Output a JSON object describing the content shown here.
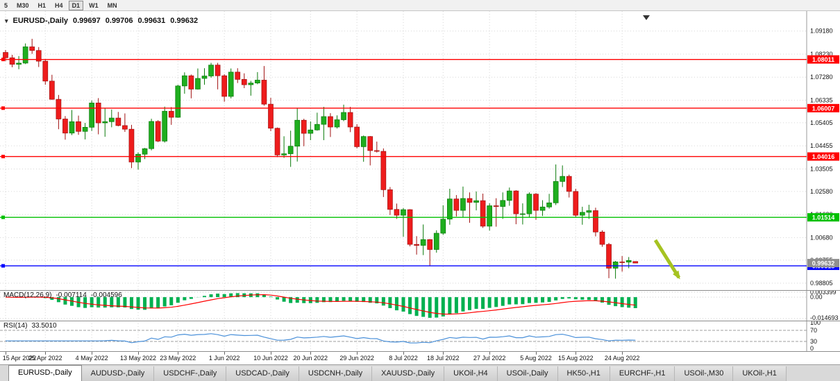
{
  "toolbar": {
    "periods": [
      {
        "label": "5",
        "selected": false
      },
      {
        "label": "M30",
        "selected": false
      },
      {
        "label": "H1",
        "selected": false
      },
      {
        "label": "H4",
        "selected": false
      },
      {
        "label": "D1",
        "selected": true
      },
      {
        "label": "W1",
        "selected": false
      },
      {
        "label": "MN",
        "selected": false
      }
    ]
  },
  "header": {
    "symbol": "EURUSD-,Daily",
    "open": "0.99697",
    "high": "0.99706",
    "low": "0.99631",
    "close": "0.99632"
  },
  "chart_data": {
    "type": "candlestick",
    "title": "EURUSD-,Daily",
    "y_axis_labels": [
      "1.09180",
      "1.08230",
      "1.07280",
      "1.06335",
      "1.05405",
      "1.04455",
      "1.03505",
      "1.02580",
      "1.01630",
      "1.00680",
      "0.99755",
      "0.98805"
    ],
    "y_range": [
      0.9852,
      1.1
    ],
    "x_tick_labels": [
      "15 Apr 2022",
      "25 Apr 2022",
      "4 May 2022",
      "13 May 2022",
      "23 May 2022",
      "1 Jun 2022",
      "10 Jun 2022",
      "20 Jun 2022",
      "29 Jun 2022",
      "8 Jul 2022",
      "18 Jul 2022",
      "27 Jul 2022",
      "5 Aug 2022",
      "15 Aug 2022",
      "24 Aug 2022"
    ],
    "x_tick_indices": [
      0,
      6,
      13,
      20,
      26,
      33,
      40,
      46,
      53,
      60,
      66,
      73,
      80,
      86,
      93
    ],
    "candles": [
      [
        1.083,
        1.084,
        1.0794,
        1.0808
      ],
      [
        1.0808,
        1.082,
        1.0769,
        1.0781
      ],
      [
        1.0781,
        1.0815,
        1.0761,
        1.0786
      ],
      [
        1.0786,
        1.0867,
        1.0782,
        1.0853
      ],
      [
        1.0853,
        1.0886,
        1.0824,
        1.0838
      ],
      [
        1.0838,
        1.0852,
        1.077,
        1.0794
      ],
      [
        1.0794,
        1.08,
        1.0697,
        1.0712
      ],
      [
        1.0712,
        1.0738,
        1.0635,
        1.0637
      ],
      [
        1.0637,
        1.0655,
        1.0514,
        1.0556
      ],
      [
        1.0556,
        1.0568,
        1.0471,
        1.0498
      ],
      [
        1.0498,
        1.0593,
        1.049,
        1.0545
      ],
      [
        1.0545,
        1.057,
        1.0491,
        1.0505
      ],
      [
        1.0505,
        1.054,
        1.0472,
        1.0522
      ],
      [
        1.0522,
        1.0632,
        1.0507,
        1.0622
      ],
      [
        1.0622,
        1.0642,
        1.0493,
        1.054
      ],
      [
        1.054,
        1.0599,
        1.0483,
        1.0545
      ],
      [
        1.0545,
        1.0595,
        1.0522,
        1.056
      ],
      [
        1.056,
        1.0585,
        1.0526,
        1.0529
      ],
      [
        1.0529,
        1.0579,
        1.0503,
        1.0514
      ],
      [
        1.0514,
        1.0532,
        1.0354,
        1.0379
      ],
      [
        1.0379,
        1.0419,
        1.0348,
        1.0411
      ],
      [
        1.0411,
        1.0437,
        1.0391,
        1.0434
      ],
      [
        1.0434,
        1.0557,
        1.0427,
        1.0546
      ],
      [
        1.0546,
        1.0551,
        1.0461,
        1.0465
      ],
      [
        1.0465,
        1.0607,
        1.0459,
        1.0588
      ],
      [
        1.0588,
        1.0605,
        1.0532,
        1.0563
      ],
      [
        1.0563,
        1.0697,
        1.0561,
        1.0692
      ],
      [
        1.0692,
        1.0748,
        1.066,
        1.0734
      ],
      [
        1.0734,
        1.0739,
        1.0641,
        1.0679
      ],
      [
        1.0679,
        1.0764,
        1.0677,
        1.0723
      ],
      [
        1.0723,
        1.0765,
        1.0697,
        1.0733
      ],
      [
        1.0733,
        1.0787,
        1.0726,
        1.0778
      ],
      [
        1.0778,
        1.0787,
        1.0678,
        1.0734
      ],
      [
        1.0734,
        1.074,
        1.0627,
        1.0649
      ],
      [
        1.0649,
        1.0764,
        1.0641,
        1.0749
      ],
      [
        1.0749,
        1.0765,
        1.0704,
        1.0719
      ],
      [
        1.0719,
        1.0744,
        1.0683,
        1.0697
      ],
      [
        1.0697,
        1.0713,
        1.0652,
        1.0704
      ],
      [
        1.0704,
        1.0749,
        1.0699,
        1.0716
      ],
      [
        1.0716,
        1.0774,
        1.0611,
        1.0617
      ],
      [
        1.0617,
        1.0643,
        1.0506,
        1.0518
      ],
      [
        1.0518,
        1.0521,
        1.0399,
        1.0408
      ],
      [
        1.0408,
        1.0485,
        1.0396,
        1.0413
      ],
      [
        1.0413,
        1.0508,
        1.0359,
        1.0444
      ],
      [
        1.0444,
        1.0601,
        1.0381,
        1.0551
      ],
      [
        1.0551,
        1.0557,
        1.0444,
        1.0497
      ],
      [
        1.0497,
        1.0546,
        1.0469,
        1.0511
      ],
      [
        1.0511,
        1.0582,
        1.0508,
        1.0534
      ],
      [
        1.0534,
        1.0606,
        1.0469,
        1.0566
      ],
      [
        1.0566,
        1.058,
        1.0482,
        1.0523
      ],
      [
        1.0523,
        1.0571,
        1.0517,
        1.0553
      ],
      [
        1.0553,
        1.0615,
        1.0547,
        1.0583
      ],
      [
        1.0583,
        1.0606,
        1.0502,
        1.0523
      ],
      [
        1.0523,
        1.0535,
        1.0435,
        1.0442
      ],
      [
        1.0442,
        1.0488,
        1.038,
        1.0484
      ],
      [
        1.0484,
        1.0486,
        1.0365,
        1.0426
      ],
      [
        1.0426,
        1.0463,
        1.0418,
        1.0423
      ],
      [
        1.0423,
        1.0435,
        1.0235,
        1.0265
      ],
      [
        1.0265,
        1.0276,
        1.0161,
        1.0184
      ],
      [
        1.0184,
        1.0208,
        1.0145,
        1.016
      ],
      [
        1.016,
        1.019,
        1.0071,
        1.0183
      ],
      [
        1.0183,
        1.0185,
        1.0032,
        1.004
      ],
      [
        1.004,
        1.0074,
        0.9998,
        1.0036
      ],
      [
        1.0036,
        1.0122,
        0.9996,
        1.006
      ],
      [
        1.006,
        1.0062,
        0.9952,
        1.0019
      ],
      [
        1.0019,
        1.0098,
        1.0006,
        1.0086
      ],
      [
        1.0086,
        1.0201,
        1.0079,
        1.0144
      ],
      [
        1.0144,
        1.0269,
        1.0121,
        1.0227
      ],
      [
        1.0227,
        1.0243,
        1.0155,
        1.018
      ],
      [
        1.018,
        1.0278,
        1.0152,
        1.0229
      ],
      [
        1.0229,
        1.0254,
        1.0129,
        1.0213
      ],
      [
        1.0213,
        1.0258,
        1.018,
        1.022
      ],
      [
        1.022,
        1.0249,
        1.0108,
        1.0115
      ],
      [
        1.0115,
        1.0209,
        1.0097,
        1.0199
      ],
      [
        1.0199,
        1.023,
        1.0113,
        1.0196
      ],
      [
        1.0196,
        1.0254,
        1.0145,
        1.0221
      ],
      [
        1.0221,
        1.0274,
        1.0199,
        1.026
      ],
      [
        1.026,
        1.0263,
        1.0123,
        1.0166
      ],
      [
        1.0166,
        1.0209,
        1.0122,
        1.0166
      ],
      [
        1.0166,
        1.0254,
        1.0151,
        1.0247
      ],
      [
        1.0247,
        1.0251,
        1.0141,
        1.018
      ],
      [
        1.018,
        1.0222,
        1.0157,
        1.0194
      ],
      [
        1.0194,
        1.0248,
        1.0187,
        1.0211
      ],
      [
        1.0211,
        1.0369,
        1.0202,
        1.0299
      ],
      [
        1.0299,
        1.0365,
        1.0276,
        1.032
      ],
      [
        1.032,
        1.0327,
        1.0233,
        1.0258
      ],
      [
        1.0258,
        1.0269,
        1.0154,
        1.016
      ],
      [
        1.016,
        1.0195,
        1.0121,
        1.0172
      ],
      [
        1.0172,
        1.0203,
        1.0145,
        1.0179
      ],
      [
        1.0179,
        1.0191,
        1.0073,
        1.0091
      ],
      [
        1.0091,
        1.0098,
        1.003,
        1.004
      ],
      [
        1.004,
        1.0046,
        0.9901,
        0.9942
      ],
      [
        0.9942,
        0.9972,
        0.9899,
        0.9968
      ],
      [
        0.9968,
        0.9992,
        0.9928,
        0.9967
      ],
      [
        0.9967,
        0.9988,
        0.9942,
        0.9974
      ],
      [
        0.99697,
        0.99706,
        0.99631,
        0.99632
      ]
    ],
    "colors": {
      "up_fill": "#1fae1f",
      "up_edge": "#0a7a0a",
      "down_fill": "#ee1c1c",
      "down_edge": "#a01010",
      "grid": "#d6d6d6"
    },
    "hlines": [
      {
        "price": 1.08011,
        "label": "1.08011",
        "color": "#ff0000"
      },
      {
        "price": 1.06007,
        "label": "1.06007",
        "color": "#ff0000"
      },
      {
        "price": 1.04016,
        "label": "1.04016",
        "color": "#ff0000"
      },
      {
        "price": 1.01514,
        "label": "1.01514",
        "color": "#00c000"
      },
      {
        "price": 0.99518,
        "label": "0.99518",
        "color": "#0000ff"
      }
    ],
    "current_price": {
      "value": 0.99632,
      "label": "0.99632",
      "tag_bg": "#8f8f8f"
    },
    "arrow_annotation": {
      "color": "#a6c321"
    },
    "macd": {
      "label": "MACD(12,26,9)",
      "main_value": "-0.007114",
      "signal_value": "-0.004596",
      "axis_labels": [
        {
          "value": 0.003399,
          "label": "0.003399"
        },
        {
          "value": 0,
          "label": "0.00"
        },
        {
          "value": -0.014693,
          "label": "-0.014693"
        }
      ],
      "histogram_color": "#00b050",
      "signal_color": "#ff0000"
    },
    "rsi": {
      "label": "RSI(14)",
      "value": "33.5010",
      "axis_labels": [
        {
          "value": 100,
          "label": "100"
        },
        {
          "value": 70,
          "label": "70"
        },
        {
          "value": 30,
          "label": "30"
        },
        {
          "value": 0,
          "label": "0"
        }
      ],
      "levels": [
        70,
        30
      ],
      "line_color": "#4a90d9"
    }
  },
  "tabs": [
    {
      "label": "EURUSD-,Daily",
      "active": true
    },
    {
      "label": "AUDUSD-,Daily",
      "active": false
    },
    {
      "label": "USDCHF-,Daily",
      "active": false
    },
    {
      "label": "USDCAD-,Daily",
      "active": false
    },
    {
      "label": "USDCNH-,Daily",
      "active": false
    },
    {
      "label": "XAUUSD-,Daily",
      "active": false
    },
    {
      "label": "UKOil-,H4",
      "active": false
    },
    {
      "label": "USOil-,Daily",
      "active": false
    },
    {
      "label": "HK50-,H1",
      "active": false
    },
    {
      "label": "EURCHF-,H1",
      "active": false
    },
    {
      "label": "USOil-,M30",
      "active": false
    },
    {
      "label": "UKOil-,H1",
      "active": false
    }
  ]
}
